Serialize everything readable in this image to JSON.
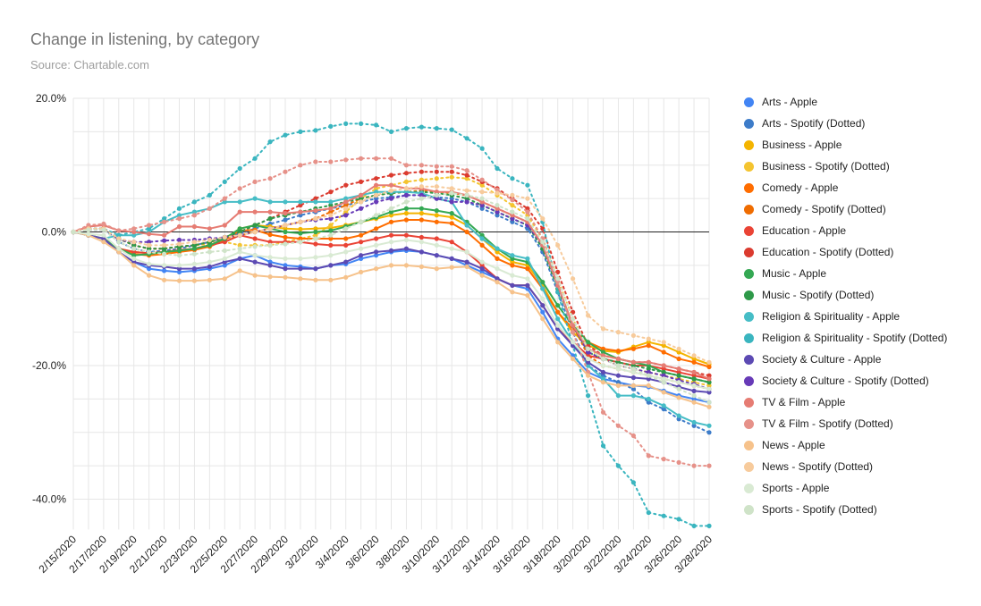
{
  "title": "Change in listening, by category",
  "subtitle": "Source: Chartable.com",
  "chart_data": {
    "type": "line",
    "title": "Change in listening, by category",
    "subtitle": "Source: Chartable.com",
    "xlabel": "",
    "ylabel": "",
    "ylim": [
      -0.44,
      0.2
    ],
    "yticks": [
      0.2,
      0,
      -0.2,
      -0.4
    ],
    "ytick_labels": [
      "20.0%",
      "0.0%",
      "-20.0%",
      "-40.0%"
    ],
    "x": [
      "2/15/2020",
      "2/16/2020",
      "2/17/2020",
      "2/18/2020",
      "2/19/2020",
      "2/20/2020",
      "2/21/2020",
      "2/22/2020",
      "2/23/2020",
      "2/24/2020",
      "2/25/2020",
      "2/26/2020",
      "2/27/2020",
      "2/28/2020",
      "2/29/2020",
      "3/1/2020",
      "3/2/2020",
      "3/3/2020",
      "3/4/2020",
      "3/5/2020",
      "3/6/2020",
      "3/7/2020",
      "3/8/2020",
      "3/9/2020",
      "3/10/2020",
      "3/11/2020",
      "3/12/2020",
      "3/13/2020",
      "3/14/2020",
      "3/15/2020",
      "3/16/2020",
      "3/17/2020",
      "3/18/2020",
      "3/19/2020",
      "3/20/2020",
      "3/21/2020",
      "3/22/2020",
      "3/23/2020",
      "3/24/2020",
      "3/25/2020",
      "3/26/2020",
      "3/27/2020",
      "3/28/2020"
    ],
    "xtick_labels": [
      "2/15/2020",
      "2/17/2020",
      "2/19/2020",
      "2/21/2020",
      "2/23/2020",
      "2/25/2020",
      "2/27/2020",
      "2/29/2020",
      "3/2/2020",
      "3/4/2020",
      "3/6/2020",
      "3/8/2020",
      "3/10/2020",
      "3/12/2020",
      "3/14/2020",
      "3/16/2020",
      "3/18/2020",
      "3/20/2020",
      "3/22/2020",
      "3/24/2020",
      "3/26/2020",
      "3/28/2020"
    ],
    "grid": true,
    "legend_position": "right",
    "series": [
      {
        "name": "Arts - Apple",
        "color": "#4285f4",
        "dotted": false,
        "values": [
          0,
          -0.005,
          -0.01,
          -0.03,
          -0.045,
          -0.055,
          -0.058,
          -0.06,
          -0.058,
          -0.055,
          -0.05,
          -0.04,
          -0.035,
          -0.045,
          -0.05,
          -0.052,
          -0.055,
          -0.05,
          -0.048,
          -0.04,
          -0.035,
          -0.03,
          -0.028,
          -0.03,
          -0.035,
          -0.04,
          -0.05,
          -0.06,
          -0.07,
          -0.08,
          -0.085,
          -0.12,
          -0.16,
          -0.185,
          -0.21,
          -0.22,
          -0.225,
          -0.23,
          -0.232,
          -0.238,
          -0.245,
          -0.25,
          -0.255
        ]
      },
      {
        "name": "Arts - Spotify (Dotted)",
        "color": "#3d7cc9",
        "dotted": true,
        "values": [
          0,
          0.005,
          0.005,
          -0.015,
          -0.025,
          -0.03,
          -0.028,
          -0.025,
          -0.02,
          -0.015,
          -0.008,
          -0.002,
          0.005,
          0.012,
          0.018,
          0.025,
          0.03,
          0.035,
          0.04,
          0.045,
          0.05,
          0.052,
          0.055,
          0.055,
          0.052,
          0.05,
          0.045,
          0.035,
          0.025,
          0.015,
          0.005,
          -0.03,
          -0.09,
          -0.15,
          -0.2,
          -0.215,
          -0.225,
          -0.235,
          -0.255,
          -0.265,
          -0.28,
          -0.29,
          -0.3
        ]
      },
      {
        "name": "Business - Apple",
        "color": "#f4b400",
        "dotted": false,
        "values": [
          0,
          -0.005,
          -0.01,
          -0.025,
          -0.03,
          -0.032,
          -0.03,
          -0.028,
          -0.025,
          -0.02,
          -0.01,
          0.005,
          0.01,
          0.008,
          0.005,
          0.004,
          0.005,
          0.006,
          0.01,
          0.015,
          0.02,
          0.025,
          0.028,
          0.028,
          0.025,
          0.022,
          0.01,
          -0.01,
          -0.03,
          -0.045,
          -0.05,
          -0.08,
          -0.12,
          -0.15,
          -0.17,
          -0.178,
          -0.18,
          -0.172,
          -0.165,
          -0.17,
          -0.18,
          -0.19,
          -0.198
        ]
      },
      {
        "name": "Business - Spotify (Dotted)",
        "color": "#f4c430",
        "dotted": true,
        "values": [
          0,
          0.003,
          0.005,
          -0.01,
          -0.02,
          -0.025,
          -0.025,
          -0.022,
          -0.02,
          -0.018,
          -0.015,
          -0.02,
          -0.02,
          -0.02,
          -0.015,
          -0.01,
          -0.005,
          0.01,
          0.03,
          0.05,
          0.065,
          0.07,
          0.075,
          0.078,
          0.08,
          0.082,
          0.08,
          0.07,
          0.055,
          0.04,
          0.025,
          -0.01,
          -0.07,
          -0.13,
          -0.175,
          -0.19,
          -0.2,
          -0.205,
          -0.21,
          -0.215,
          -0.22,
          -0.225,
          -0.23
        ]
      },
      {
        "name": "Comedy - Apple",
        "color": "#ff6d00",
        "dotted": false,
        "values": [
          0,
          -0.005,
          -0.01,
          -0.025,
          -0.033,
          -0.035,
          -0.033,
          -0.03,
          -0.027,
          -0.022,
          -0.012,
          0.002,
          0.003,
          -0.004,
          -0.008,
          -0.01,
          -0.01,
          -0.01,
          -0.01,
          -0.005,
          0.005,
          0.015,
          0.018,
          0.018,
          0.015,
          0.013,
          0,
          -0.02,
          -0.04,
          -0.05,
          -0.055,
          -0.085,
          -0.12,
          -0.145,
          -0.165,
          -0.175,
          -0.178,
          -0.175,
          -0.17,
          -0.18,
          -0.19,
          -0.195,
          -0.202
        ]
      },
      {
        "name": "Comedy - Spotify (Dotted)",
        "color": "#ef6c00",
        "dotted": true,
        "values": [
          0,
          0.005,
          0.005,
          -0.01,
          -0.02,
          -0.025,
          -0.025,
          -0.022,
          -0.02,
          -0.015,
          -0.01,
          -0.005,
          0,
          0.005,
          0.01,
          0.015,
          0.02,
          0.03,
          0.04,
          0.05,
          0.055,
          0.058,
          0.06,
          0.062,
          0.06,
          0.058,
          0.055,
          0.045,
          0.035,
          0.025,
          0.015,
          -0.02,
          -0.08,
          -0.14,
          -0.185,
          -0.2,
          -0.205,
          -0.21,
          -0.215,
          -0.22,
          -0.225,
          -0.23,
          -0.235
        ]
      },
      {
        "name": "Education - Apple",
        "color": "#ea4335",
        "dotted": false,
        "values": [
          0,
          -0.005,
          -0.01,
          -0.025,
          -0.03,
          -0.032,
          -0.03,
          -0.027,
          -0.025,
          -0.02,
          -0.015,
          -0.005,
          -0.01,
          -0.015,
          -0.015,
          -0.015,
          -0.018,
          -0.02,
          -0.02,
          -0.015,
          -0.01,
          -0.005,
          -0.005,
          -0.008,
          -0.01,
          -0.015,
          -0.03,
          -0.05,
          -0.07,
          -0.08,
          -0.08,
          -0.11,
          -0.145,
          -0.165,
          -0.185,
          -0.19,
          -0.195,
          -0.2,
          -0.2,
          -0.205,
          -0.21,
          -0.215,
          -0.22
        ]
      },
      {
        "name": "Education - Spotify (Dotted)",
        "color": "#db3b2f",
        "dotted": true,
        "values": [
          0,
          0.005,
          0.005,
          -0.01,
          -0.02,
          -0.025,
          -0.025,
          -0.022,
          -0.02,
          -0.015,
          -0.008,
          0,
          0.01,
          0.02,
          0.03,
          0.04,
          0.05,
          0.06,
          0.07,
          0.075,
          0.08,
          0.085,
          0.088,
          0.09,
          0.09,
          0.09,
          0.085,
          0.075,
          0.065,
          0.05,
          0.035,
          0.005,
          -0.06,
          -0.12,
          -0.17,
          -0.185,
          -0.19,
          -0.195,
          -0.195,
          -0.2,
          -0.205,
          -0.21,
          -0.215
        ]
      },
      {
        "name": "Music - Apple",
        "color": "#34a853",
        "dotted": false,
        "values": [
          0,
          -0.005,
          -0.01,
          -0.025,
          -0.035,
          -0.033,
          -0.03,
          -0.028,
          -0.025,
          -0.02,
          -0.01,
          0.005,
          0.01,
          0.005,
          0,
          -0.002,
          0,
          0.002,
          0.008,
          0.015,
          0.022,
          0.03,
          0.035,
          0.035,
          0.032,
          0.028,
          0.015,
          -0.005,
          -0.025,
          -0.04,
          -0.045,
          -0.075,
          -0.11,
          -0.14,
          -0.165,
          -0.18,
          -0.19,
          -0.195,
          -0.2,
          -0.21,
          -0.215,
          -0.22,
          -0.225
        ]
      },
      {
        "name": "Music - Spotify (Dotted)",
        "color": "#2e9949",
        "dotted": true,
        "values": [
          0,
          0.005,
          0.005,
          -0.01,
          -0.02,
          -0.025,
          -0.025,
          -0.022,
          -0.02,
          -0.015,
          -0.008,
          0,
          0.01,
          0.02,
          0.025,
          0.03,
          0.035,
          0.04,
          0.045,
          0.05,
          0.055,
          0.058,
          0.06,
          0.06,
          0.058,
          0.055,
          0.05,
          0.04,
          0.03,
          0.02,
          0.01,
          -0.025,
          -0.085,
          -0.14,
          -0.18,
          -0.19,
          -0.195,
          -0.2,
          -0.205,
          -0.21,
          -0.215,
          -0.22,
          -0.225
        ]
      },
      {
        "name": "Religion & Spirituality - Apple",
        "color": "#46bdc6",
        "dotted": false,
        "values": [
          0,
          -0.005,
          -0.01,
          -0.005,
          -0.005,
          0,
          0.015,
          0.025,
          0.03,
          0.035,
          0.045,
          0.045,
          0.05,
          0.045,
          0.045,
          0.045,
          0.045,
          0.045,
          0.05,
          0.055,
          0.06,
          0.06,
          0.06,
          0.058,
          0.05,
          0.045,
          0.01,
          -0.01,
          -0.025,
          -0.035,
          -0.04,
          -0.085,
          -0.13,
          -0.165,
          -0.2,
          -0.22,
          -0.245,
          -0.245,
          -0.25,
          -0.26,
          -0.275,
          -0.285,
          -0.29
        ]
      },
      {
        "name": "Religion & Spirituality - Spotify (Dotted)",
        "color": "#3ab5bf",
        "dotted": true,
        "values": [
          0,
          0.005,
          0.005,
          -0.005,
          0,
          0.005,
          0.02,
          0.035,
          0.045,
          0.055,
          0.075,
          0.095,
          0.11,
          0.135,
          0.145,
          0.15,
          0.152,
          0.158,
          0.162,
          0.162,
          0.16,
          0.15,
          0.155,
          0.157,
          0.155,
          0.153,
          0.14,
          0.125,
          0.095,
          0.08,
          0.07,
          0.015,
          -0.09,
          -0.17,
          -0.245,
          -0.32,
          -0.35,
          -0.375,
          -0.42,
          -0.425,
          -0.43,
          -0.44,
          -0.44
        ]
      },
      {
        "name": "Society & Culture - Apple",
        "color": "#5c4ab3",
        "dotted": false,
        "values": [
          0,
          -0.005,
          -0.01,
          -0.03,
          -0.045,
          -0.05,
          -0.052,
          -0.055,
          -0.055,
          -0.052,
          -0.045,
          -0.04,
          -0.045,
          -0.05,
          -0.055,
          -0.055,
          -0.055,
          -0.05,
          -0.045,
          -0.035,
          -0.03,
          -0.028,
          -0.025,
          -0.03,
          -0.035,
          -0.04,
          -0.045,
          -0.055,
          -0.07,
          -0.08,
          -0.08,
          -0.11,
          -0.145,
          -0.17,
          -0.195,
          -0.21,
          -0.215,
          -0.218,
          -0.22,
          -0.225,
          -0.232,
          -0.238,
          -0.24
        ]
      },
      {
        "name": "Society & Culture - Spotify (Dotted)",
        "color": "#673ab7",
        "dotted": true,
        "values": [
          0,
          0.003,
          0.003,
          -0.012,
          -0.015,
          -0.015,
          -0.013,
          -0.012,
          -0.012,
          -0.01,
          -0.008,
          -0.005,
          0,
          0.005,
          0.01,
          0.015,
          0.018,
          0.02,
          0.025,
          0.035,
          0.045,
          0.05,
          0.055,
          0.055,
          0.05,
          0.045,
          0.045,
          0.04,
          0.03,
          0.02,
          0.01,
          -0.02,
          -0.08,
          -0.14,
          -0.18,
          -0.19,
          -0.2,
          -0.205,
          -0.21,
          -0.215,
          -0.222,
          -0.228,
          -0.235
        ]
      },
      {
        "name": "TV & Film - Apple",
        "color": "#e67c73",
        "dotted": false,
        "values": [
          0,
          0.008,
          0.01,
          0.002,
          0,
          -0.003,
          -0.005,
          0.008,
          0.008,
          0.005,
          0.01,
          0.03,
          0.03,
          0.03,
          0.028,
          0.03,
          0.032,
          0.035,
          0.045,
          0.055,
          0.07,
          0.07,
          0.065,
          0.065,
          0.06,
          0.06,
          0.055,
          0.045,
          0.035,
          0.025,
          0.015,
          -0.02,
          -0.08,
          -0.14,
          -0.175,
          -0.185,
          -0.19,
          -0.195,
          -0.195,
          -0.2,
          -0.205,
          -0.21,
          -0.22
        ]
      },
      {
        "name": "TV & Film - Spotify (Dotted)",
        "color": "#e69189",
        "dotted": true,
        "values": [
          0,
          0.01,
          0.012,
          0.002,
          0.005,
          0.01,
          0.015,
          0.02,
          0.025,
          0.035,
          0.05,
          0.065,
          0.075,
          0.08,
          0.09,
          0.1,
          0.105,
          0.105,
          0.108,
          0.11,
          0.11,
          0.11,
          0.1,
          0.1,
          0.098,
          0.098,
          0.092,
          0.078,
          0.063,
          0.048,
          0.03,
          -0.01,
          -0.075,
          -0.15,
          -0.21,
          -0.27,
          -0.29,
          -0.305,
          -0.335,
          -0.34,
          -0.345,
          -0.35,
          -0.35
        ]
      },
      {
        "name": "News - Apple",
        "color": "#f6c28b",
        "dotted": false,
        "values": [
          0,
          -0.005,
          -0.015,
          -0.03,
          -0.05,
          -0.065,
          -0.072,
          -0.073,
          -0.073,
          -0.072,
          -0.07,
          -0.058,
          -0.065,
          -0.067,
          -0.068,
          -0.07,
          -0.072,
          -0.072,
          -0.068,
          -0.06,
          -0.055,
          -0.05,
          -0.05,
          -0.052,
          -0.055,
          -0.053,
          -0.052,
          -0.065,
          -0.075,
          -0.09,
          -0.095,
          -0.13,
          -0.165,
          -0.19,
          -0.215,
          -0.225,
          -0.23,
          -0.23,
          -0.23,
          -0.24,
          -0.248,
          -0.255,
          -0.262
        ]
      },
      {
        "name": "News - Spotify (Dotted)",
        "color": "#f7cb9c",
        "dotted": true,
        "values": [
          0,
          0.005,
          0.005,
          -0.01,
          -0.015,
          -0.02,
          -0.02,
          -0.018,
          -0.015,
          -0.012,
          -0.008,
          -0.005,
          0,
          0.005,
          0.01,
          0.015,
          0.02,
          0.025,
          0.035,
          0.045,
          0.055,
          0.062,
          0.065,
          0.068,
          0.068,
          0.065,
          0.062,
          0.06,
          0.058,
          0.055,
          0.05,
          0.02,
          -0.02,
          -0.07,
          -0.125,
          -0.145,
          -0.15,
          -0.155,
          -0.16,
          -0.165,
          -0.175,
          -0.185,
          -0.195
        ]
      },
      {
        "name": "Sports - Apple",
        "color": "#d9ead3",
        "dotted": false,
        "values": [
          0,
          -0.003,
          -0.005,
          -0.025,
          -0.04,
          -0.048,
          -0.05,
          -0.05,
          -0.048,
          -0.045,
          -0.04,
          -0.03,
          -0.035,
          -0.038,
          -0.04,
          -0.04,
          -0.038,
          -0.035,
          -0.03,
          -0.025,
          -0.02,
          -0.015,
          -0.012,
          -0.015,
          -0.02,
          -0.025,
          -0.03,
          -0.045,
          -0.055,
          -0.065,
          -0.07,
          -0.1,
          -0.14,
          -0.165,
          -0.19,
          -0.2,
          -0.205,
          -0.21,
          -0.215,
          -0.22,
          -0.225,
          -0.23,
          -0.235
        ]
      },
      {
        "name": "Sports - Spotify (Dotted)",
        "color": "#cfe3c8",
        "dotted": true,
        "values": [
          0,
          0.003,
          0.003,
          -0.015,
          -0.025,
          -0.03,
          -0.033,
          -0.035,
          -0.033,
          -0.03,
          -0.028,
          -0.025,
          -0.022,
          -0.02,
          -0.018,
          -0.015,
          -0.01,
          -0.005,
          0.005,
          0.015,
          0.025,
          0.035,
          0.045,
          0.05,
          0.055,
          0.058,
          0.055,
          0.05,
          0.04,
          0.03,
          0.02,
          -0.015,
          -0.07,
          -0.13,
          -0.175,
          -0.19,
          -0.2,
          -0.205,
          -0.215,
          -0.225,
          -0.235,
          -0.245,
          -0.255
        ]
      }
    ]
  }
}
